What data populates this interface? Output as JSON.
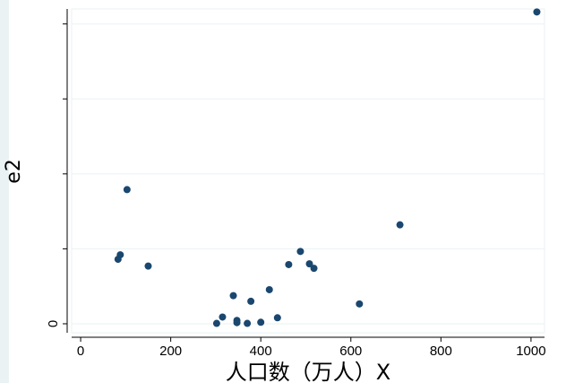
{
  "chart_data": {
    "type": "scatter",
    "title": "",
    "xlabel": "人口数（万人）X",
    "ylabel": "e2",
    "xlim": [
      -20,
      1030
    ],
    "ylim": [
      -120,
      4200
    ],
    "xticks": [
      0,
      200,
      400,
      600,
      800,
      1000
    ],
    "xtick_labels": [
      "0",
      "200",
      "400",
      "600",
      "800",
      "1000"
    ],
    "yticks": [
      0,
      1000,
      2000,
      3000,
      4000
    ],
    "ytick_labels": [
      "0",
      "",
      "",
      "",
      ""
    ],
    "grid": "horizontal",
    "colors": {
      "marker": "#1a476f",
      "background": "#eaf2f3",
      "plot_background": "#ffffff",
      "grid": "#eaf2f3"
    },
    "series": [
      {
        "x": [
          1013,
          103,
          709,
          88,
          83,
          150,
          488,
          462,
          508,
          518,
          419,
          378,
          339,
          619,
          437,
          315,
          347,
          400,
          302,
          347,
          370
        ],
        "y": [
          4160,
          1790,
          1320,
          920,
          860,
          770,
          965,
          790,
          800,
          740,
          455,
          300,
          375,
          265,
          80,
          90,
          45,
          20,
          5,
          15,
          5
        ]
      }
    ]
  }
}
